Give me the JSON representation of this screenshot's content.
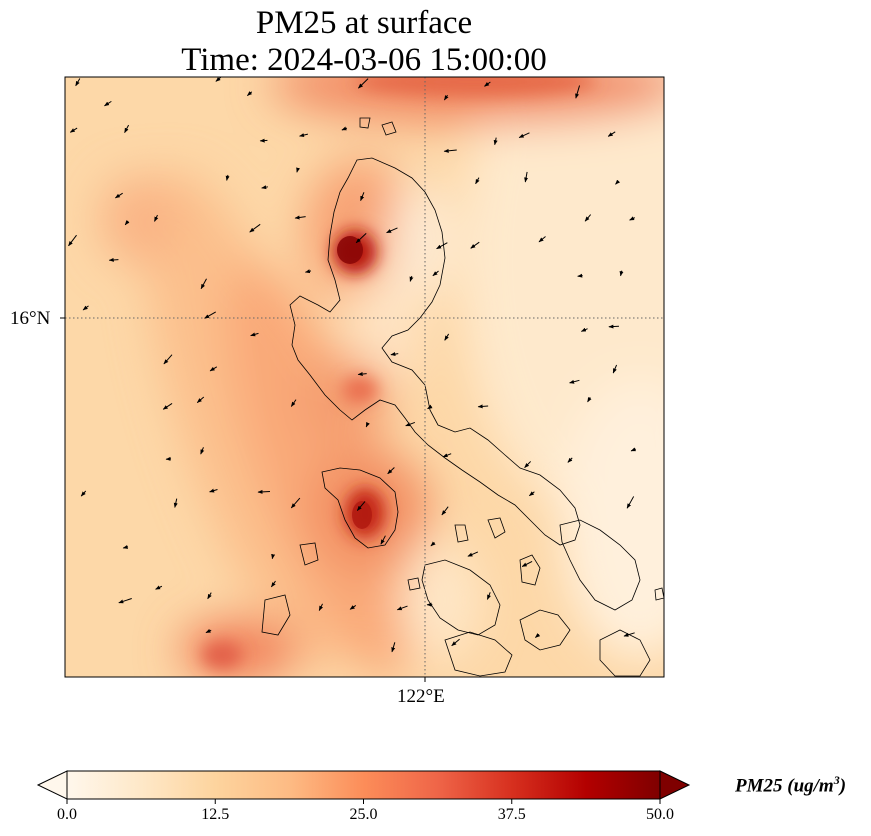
{
  "title": {
    "line1": "PM25 at surface",
    "line2": "Time: 2024-03-06 15:00:00"
  },
  "axes": {
    "lat_tick_label": "16°N",
    "lon_tick_label": "122°E",
    "gridlines": "dotted"
  },
  "colorbar": {
    "label_prefix": "PM25 (ug/m",
    "label_sup": "3",
    "label_suffix": ")",
    "tick_labels": [
      "0.0",
      "12.5",
      "25.0",
      "37.5",
      "50.0"
    ],
    "min": 0,
    "max": 50,
    "extend": "both",
    "colormap": "OrRd",
    "colors": [
      "#fff7ec",
      "#fee8c8",
      "#fdd49e",
      "#fdbb84",
      "#fc8d59",
      "#ef6548",
      "#d7301f",
      "#b30000",
      "#7f0000"
    ]
  },
  "map": {
    "variable": "PM25",
    "features": [
      "coastlines",
      "wind-vectors"
    ]
  }
}
